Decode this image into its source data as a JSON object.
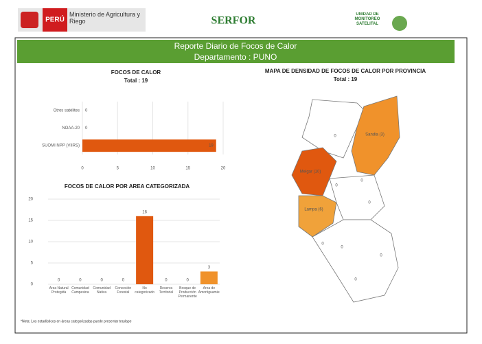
{
  "header": {
    "country": "PERÚ",
    "ministry": "Ministerio de Agricultura y Riego",
    "agency": "SERFOR",
    "unit": "UNIDAD DE MONITOREO SATELITAL"
  },
  "banner": {
    "title": "Reporte Diario de Focos de Calor",
    "subtitle": "Departamento : PUNO"
  },
  "chart_data": [
    {
      "type": "bar",
      "orientation": "horizontal",
      "title": "FOCOS DE CALOR",
      "subtitle": "Total : 19",
      "categories": [
        "Otros satélites",
        "NOAA-20",
        "SUOMI NPP (VIIRS)"
      ],
      "values": [
        0,
        0,
        19
      ],
      "color": "#e0580f",
      "xlim": [
        0,
        20
      ],
      "xticks": [
        0,
        5,
        10,
        15,
        20
      ],
      "grid": true
    },
    {
      "type": "bar",
      "orientation": "vertical",
      "title": "FOCOS DE CALOR POR AREA CATEGORIZADA",
      "categories": [
        "Área Natural Protegida",
        "Comunidad Campesina",
        "Comunidad Nativa",
        "Concesión Forestal",
        "No categorizado",
        "Reserva Territorial",
        "Bosque de Producción Permanente",
        "Área de Amortiguamiento"
      ],
      "values": [
        0,
        0,
        0,
        0,
        16,
        0,
        0,
        3
      ],
      "color": "#e0580f",
      "ylim": [
        0,
        20
      ],
      "yticks": [
        0,
        5,
        10,
        15,
        20
      ],
      "grid": true
    }
  ],
  "map": {
    "title": "MAPA DE DENSIDAD DE FOCOS DE CALOR POR PROVINCIA",
    "subtitle": "Total : 19",
    "regions": [
      {
        "label": "Sandia (3)"
      },
      {
        "label": "Melgar (10)"
      },
      {
        "label": "Lampa (6)"
      },
      {
        "label": "0"
      },
      {
        "label": "0"
      },
      {
        "label": "0"
      },
      {
        "label": "0"
      },
      {
        "label": "0"
      },
      {
        "label": "0"
      },
      {
        "label": "0"
      },
      {
        "label": "0"
      }
    ]
  },
  "note": "*Nota: Los estadísticos en áreas categorizadas puede presentar traslape"
}
